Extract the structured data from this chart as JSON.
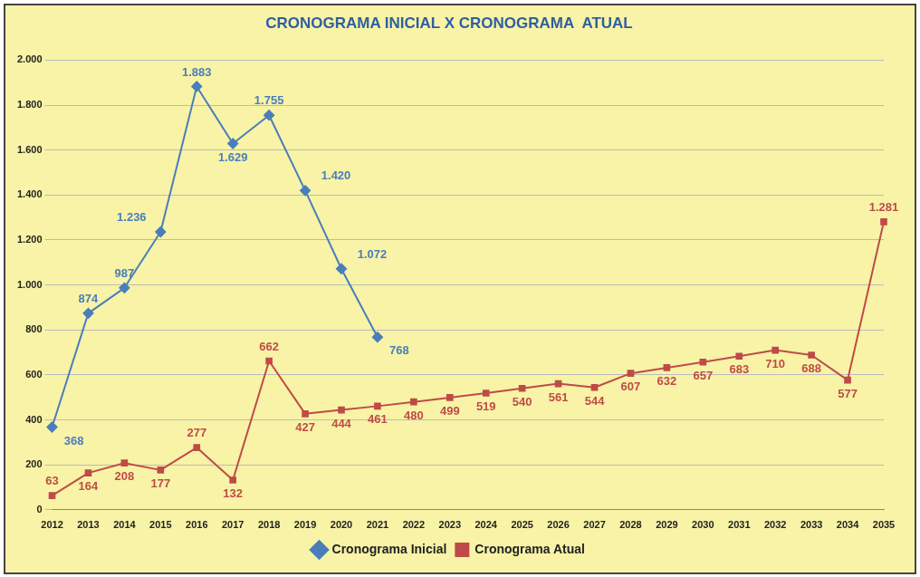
{
  "chart_data": {
    "type": "line",
    "title": "CRONOGRAMA INICIAL X CRONOGRAMA  ATUAL",
    "categories": [
      "2012",
      "2013",
      "2014",
      "2015",
      "2016",
      "2017",
      "2018",
      "2019",
      "2020",
      "2021",
      "2022",
      "2023",
      "2024",
      "2025",
      "2026",
      "2027",
      "2028",
      "2029",
      "2030",
      "2031",
      "2032",
      "2033",
      "2034",
      "2035"
    ],
    "series": [
      {
        "name": "Cronograma Inicial",
        "color": "#4a7ebb",
        "marker": "diamond",
        "values": [
          368,
          874,
          987,
          1236,
          1883,
          1629,
          1755,
          1420,
          1072,
          768,
          null,
          null,
          null,
          null,
          null,
          null,
          null,
          null,
          null,
          null,
          null,
          null,
          null,
          null
        ],
        "value_labels": [
          "368",
          "874",
          "987",
          "1.236",
          "1.883",
          "1.629",
          "1.755",
          "1.420",
          "1.072",
          "768",
          null,
          null,
          null,
          null,
          null,
          null,
          null,
          null,
          null,
          null,
          null,
          null,
          null,
          null
        ]
      },
      {
        "name": "Cronograma Atual",
        "color": "#be4b48",
        "marker": "square",
        "values": [
          63,
          164,
          208,
          177,
          277,
          132,
          662,
          427,
          444,
          461,
          480,
          499,
          519,
          540,
          561,
          544,
          607,
          632,
          657,
          683,
          710,
          688,
          577,
          1281
        ],
        "value_labels": [
          "63",
          "164",
          "208",
          "177",
          "277",
          "132",
          "662",
          "427",
          "444",
          "461",
          "480",
          "499",
          "519",
          "540",
          "561",
          "544",
          "607",
          "632",
          "657",
          "683",
          "710",
          "688",
          "577",
          "1.281"
        ]
      }
    ],
    "ylim": [
      0,
      2000
    ],
    "yticks": [
      {
        "value": 0,
        "label": "0"
      },
      {
        "value": 200,
        "label": "200"
      },
      {
        "value": 400,
        "label": "400"
      },
      {
        "value": 600,
        "label": "600"
      },
      {
        "value": 800,
        "label": "800"
      },
      {
        "value": 1000,
        "label": "1.000"
      },
      {
        "value": 1200,
        "label": "1.200"
      },
      {
        "value": 1400,
        "label": "1.400"
      },
      {
        "value": 1600,
        "label": "1.600"
      },
      {
        "value": 1800,
        "label": "1.800"
      },
      {
        "value": 2000,
        "label": "2.000"
      }
    ],
    "grid": "y",
    "legend": "bottom",
    "line_style": "solid"
  }
}
